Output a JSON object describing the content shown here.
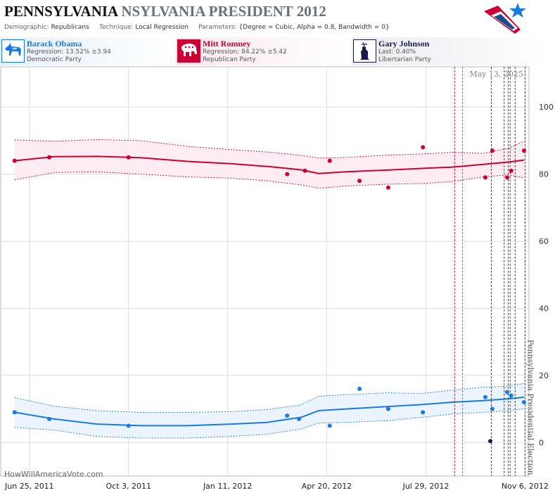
{
  "header": {
    "title_state": "PENNSYLVANIA",
    "title_rest": "NSYLVANIA PRESIDENT 2012",
    "demographic_label": "Demographic:",
    "demographic_value": "Republicans",
    "technique_label": "Technique:",
    "technique_value": "Local Regression",
    "parameters_label": "Parameters:",
    "parameters_value": "{Degree = Cubic, Alpha = 0.8, Bandwidth = 0}"
  },
  "candidates": [
    {
      "name": "Barack Obama",
      "stat": "Regression: 13.52% ±3.94",
      "party": "Democratic Party",
      "color": "#1a7ae0",
      "bg": "#e6f0fb",
      "icon": "donkey-icon"
    },
    {
      "name": "Mitt Romney",
      "stat": "Regression: 84.22% ±5.42",
      "party": "Republican Party",
      "color": "#cc0033",
      "bg": "#fbe8ee",
      "icon": "elephant-icon"
    },
    {
      "name": "Gary Johnson",
      "stat": "Last: 0.40%",
      "party": "Libertarian Party",
      "color": "#1a1a4a",
      "bg": "#ececf2",
      "icon": "statue-of-liberty-icon"
    }
  ],
  "watermark": "HowWillAmericaVote.com",
  "chart_data": {
    "type": "scatter",
    "x_axis": {
      "type": "date",
      "range": [
        "2011-05-27",
        "2012-11-10"
      ],
      "ticks": [
        "Jun 25, 2011",
        "Oct 3, 2011",
        "Jan 11, 2012",
        "Apr 20, 2012",
        "Jul 29, 2012",
        "Nov 6, 2012"
      ],
      "tick_dates": [
        "2011-06-25",
        "2011-10-03",
        "2012-01-11",
        "2012-04-20",
        "2012-07-29",
        "2012-11-06"
      ]
    },
    "y_axis": {
      "range": [
        -10,
        112
      ],
      "ticks": [
        0,
        20,
        40,
        60,
        80,
        100
      ],
      "position": "right"
    },
    "grid": true,
    "date_annotation": "May 13, 2025",
    "election_label": "Pennsylvania Presidential Election",
    "event_lines": [
      {
        "date": "2012-08-27",
        "color": "#cc0033"
      },
      {
        "date": "2012-09-04",
        "color": "#1a7ae0"
      },
      {
        "date": "2012-10-03",
        "color": "#333333"
      },
      {
        "date": "2012-10-16",
        "color": "#333333"
      },
      {
        "date": "2012-10-20",
        "color": "#333333"
      },
      {
        "date": "2012-10-22",
        "color": "#333333"
      },
      {
        "date": "2012-10-27",
        "color": "#333333"
      },
      {
        "date": "2012-11-06",
        "color": "#333333"
      }
    ],
    "series": [
      {
        "name": "Mitt Romney",
        "color": "#cc0033",
        "band_fill": "#fdecf1",
        "points": [
          [
            "2011-06-10",
            84
          ],
          [
            "2011-07-15",
            85
          ],
          [
            "2011-10-03",
            85
          ],
          [
            "2012-03-11",
            80
          ],
          [
            "2012-03-29",
            81
          ],
          [
            "2012-04-23",
            84
          ],
          [
            "2012-05-23",
            78
          ],
          [
            "2012-06-21",
            76
          ],
          [
            "2012-07-26",
            88
          ],
          [
            "2012-09-27",
            79
          ],
          [
            "2012-10-04",
            87
          ],
          [
            "2012-10-19",
            79
          ],
          [
            "2012-10-23",
            81
          ],
          [
            "2012-11-05",
            87
          ]
        ],
        "fit": [
          [
            "2011-06-10",
            84
          ],
          [
            "2011-07-20",
            85.2
          ],
          [
            "2011-09-01",
            85.3
          ],
          [
            "2011-10-15",
            84.9
          ],
          [
            "2011-12-01",
            83.8
          ],
          [
            "2012-01-15",
            83.1
          ],
          [
            "2012-02-20",
            82.3
          ],
          [
            "2012-03-25",
            81.3
          ],
          [
            "2012-04-12",
            80.2
          ],
          [
            "2012-05-10",
            80.7
          ],
          [
            "2012-06-20",
            81.2
          ],
          [
            "2012-07-25",
            81.7
          ],
          [
            "2012-08-25",
            82.1
          ],
          [
            "2012-09-25",
            82.9
          ],
          [
            "2012-10-20",
            83.6
          ],
          [
            "2012-11-05",
            84.2
          ]
        ],
        "upper": [
          [
            "2011-06-10",
            90.2
          ],
          [
            "2011-07-20",
            89.8
          ],
          [
            "2011-09-01",
            90.3
          ],
          [
            "2011-10-15",
            90
          ],
          [
            "2011-12-01",
            88.3
          ],
          [
            "2012-01-15",
            87.3
          ],
          [
            "2012-02-20",
            86.6
          ],
          [
            "2012-03-25",
            85.6
          ],
          [
            "2012-04-12",
            84.8
          ],
          [
            "2012-05-10",
            85
          ],
          [
            "2012-06-20",
            85.7
          ],
          [
            "2012-07-25",
            86
          ],
          [
            "2012-08-25",
            86.5
          ],
          [
            "2012-09-25",
            86.2
          ],
          [
            "2012-10-20",
            87.7
          ],
          [
            "2012-11-05",
            89.8
          ]
        ],
        "lower": [
          [
            "2011-06-10",
            78.3
          ],
          [
            "2011-07-20",
            80.5
          ],
          [
            "2011-09-01",
            80.7
          ],
          [
            "2011-10-15",
            80
          ],
          [
            "2011-12-01",
            79.2
          ],
          [
            "2012-01-15",
            78.8
          ],
          [
            "2012-02-20",
            78
          ],
          [
            "2012-03-25",
            76.8
          ],
          [
            "2012-04-12",
            75.8
          ],
          [
            "2012-05-10",
            76.5
          ],
          [
            "2012-06-20",
            77
          ],
          [
            "2012-07-25",
            77.2
          ],
          [
            "2012-08-25",
            77.8
          ],
          [
            "2012-09-25",
            79.2
          ],
          [
            "2012-10-20",
            79.8
          ],
          [
            "2012-11-05",
            78.9
          ]
        ]
      },
      {
        "name": "Barack Obama",
        "color": "#1a7ae0",
        "band_fill": "#ebf3fc",
        "points": [
          [
            "2011-06-10",
            9
          ],
          [
            "2011-07-15",
            7
          ],
          [
            "2011-10-03",
            5
          ],
          [
            "2012-03-11",
            8
          ],
          [
            "2012-03-23",
            7
          ],
          [
            "2012-04-23",
            5
          ],
          [
            "2012-05-23",
            16
          ],
          [
            "2012-06-21",
            10
          ],
          [
            "2012-07-26",
            9
          ],
          [
            "2012-09-27",
            13.5
          ],
          [
            "2012-10-04",
            10
          ],
          [
            "2012-10-19",
            15
          ],
          [
            "2012-10-23",
            14
          ],
          [
            "2012-11-05",
            12
          ]
        ],
        "fit": [
          [
            "2011-06-10",
            9
          ],
          [
            "2011-07-20",
            7
          ],
          [
            "2011-09-01",
            5.5
          ],
          [
            "2011-10-15",
            5
          ],
          [
            "2011-12-01",
            5
          ],
          [
            "2012-01-15",
            5.5
          ],
          [
            "2012-02-20",
            6
          ],
          [
            "2012-03-25",
            7.5
          ],
          [
            "2012-04-12",
            9.5
          ],
          [
            "2012-05-10",
            10
          ],
          [
            "2012-06-20",
            10.7
          ],
          [
            "2012-07-25",
            11.3
          ],
          [
            "2012-08-25",
            12
          ],
          [
            "2012-09-25",
            12.5
          ],
          [
            "2012-10-20",
            13
          ],
          [
            "2012-11-05",
            13.5
          ]
        ],
        "upper": [
          [
            "2011-06-10",
            13.4
          ],
          [
            "2011-07-20",
            10.8
          ],
          [
            "2011-09-01",
            9.5
          ],
          [
            "2011-10-15",
            9
          ],
          [
            "2011-12-01",
            9
          ],
          [
            "2012-01-15",
            9.2
          ],
          [
            "2012-02-20",
            9.8
          ],
          [
            "2012-03-25",
            11.2
          ],
          [
            "2012-04-12",
            13.8
          ],
          [
            "2012-05-10",
            14.3
          ],
          [
            "2012-06-20",
            14.8
          ],
          [
            "2012-07-25",
            14.6
          ],
          [
            "2012-08-25",
            15.6
          ],
          [
            "2012-09-25",
            16.5
          ],
          [
            "2012-10-20",
            16.8
          ],
          [
            "2012-11-05",
            17.6
          ]
        ],
        "lower": [
          [
            "2011-06-10",
            4.5
          ],
          [
            "2011-07-20",
            3.7
          ],
          [
            "2011-09-01",
            1.8
          ],
          [
            "2011-10-15",
            1.3
          ],
          [
            "2011-12-01",
            1.3
          ],
          [
            "2012-01-15",
            1.8
          ],
          [
            "2012-02-20",
            2.5
          ],
          [
            "2012-03-25",
            4
          ],
          [
            "2012-04-12",
            5.8
          ],
          [
            "2012-05-10",
            6
          ],
          [
            "2012-06-20",
            6.5
          ],
          [
            "2012-07-25",
            7.5
          ],
          [
            "2012-08-25",
            8.5
          ],
          [
            "2012-09-25",
            9
          ],
          [
            "2012-10-20",
            9.4
          ],
          [
            "2012-11-05",
            10.1
          ]
        ]
      },
      {
        "name": "Gary Johnson",
        "color": "#1a1a4a",
        "points": [
          [
            "2012-10-02",
            0.4
          ]
        ]
      }
    ]
  }
}
